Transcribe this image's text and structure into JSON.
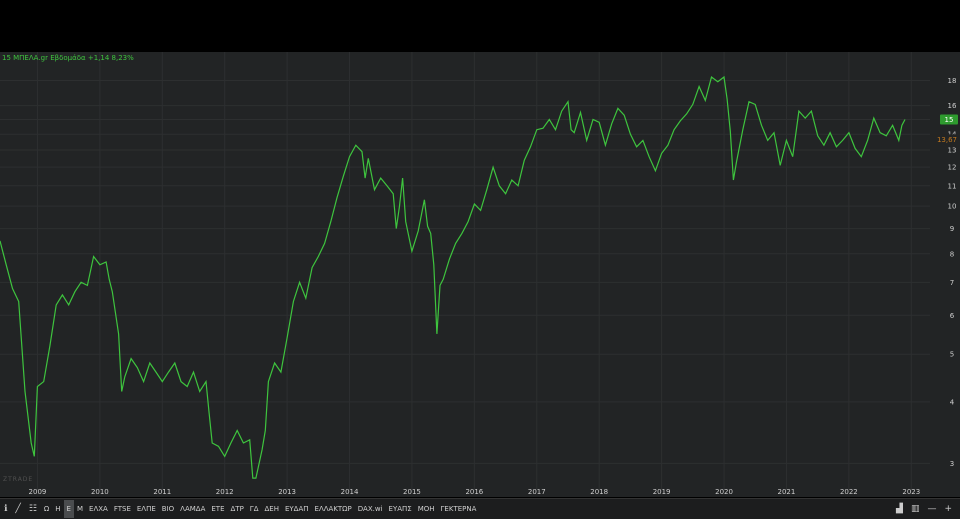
{
  "legend": {
    "text": "15 ΜΠΕΛΑ.gr Εβδομάδα +1,14 8,23%"
  },
  "watermark": "ZTRADE",
  "colors": {
    "line": "#3ec43e",
    "background": "#222425",
    "grid": "#2d2f30",
    "axis_text": "#cfcfcf",
    "price_badge": "#2e9a2e",
    "ref_badge": "#c47a1e"
  },
  "chart_data": {
    "type": "line",
    "scale": "log",
    "x_tick_labels": [
      "2009",
      "2010",
      "2011",
      "2012",
      "2013",
      "2014",
      "2015",
      "2016",
      "2017",
      "2018",
      "2019",
      "2020",
      "2021",
      "2022",
      "2023"
    ],
    "y_tick_labels": [
      "3",
      "4",
      "5",
      "6",
      "7",
      "8",
      "9",
      "10",
      "11",
      "12",
      "13",
      "14",
      "15",
      "16",
      "18"
    ],
    "xlim": [
      2008.4,
      2023.3
    ],
    "ylim": [
      2.75,
      20
    ],
    "series": [
      {
        "values": [
          [
            2008.4,
            8.5
          ],
          [
            2008.5,
            7.6
          ],
          [
            2008.6,
            6.8
          ],
          [
            2008.7,
            6.4
          ],
          [
            2008.8,
            4.2
          ],
          [
            2008.9,
            3.3
          ],
          [
            2008.95,
            3.1
          ],
          [
            2009.0,
            4.3
          ],
          [
            2009.1,
            4.4
          ],
          [
            2009.2,
            5.2
          ],
          [
            2009.3,
            6.3
          ],
          [
            2009.4,
            6.6
          ],
          [
            2009.5,
            6.3
          ],
          [
            2009.6,
            6.7
          ],
          [
            2009.7,
            7.0
          ],
          [
            2009.8,
            6.9
          ],
          [
            2009.9,
            7.9
          ],
          [
            2010.0,
            7.6
          ],
          [
            2010.1,
            7.7
          ],
          [
            2010.15,
            7.1
          ],
          [
            2010.2,
            6.7
          ],
          [
            2010.3,
            5.5
          ],
          [
            2010.35,
            4.2
          ],
          [
            2010.4,
            4.5
          ],
          [
            2010.5,
            4.9
          ],
          [
            2010.6,
            4.7
          ],
          [
            2010.7,
            4.4
          ],
          [
            2010.8,
            4.8
          ],
          [
            2010.9,
            4.6
          ],
          [
            2011.0,
            4.4
          ],
          [
            2011.1,
            4.6
          ],
          [
            2011.2,
            4.8
          ],
          [
            2011.3,
            4.4
          ],
          [
            2011.4,
            4.3
          ],
          [
            2011.5,
            4.6
          ],
          [
            2011.6,
            4.2
          ],
          [
            2011.7,
            4.4
          ],
          [
            2011.75,
            3.8
          ],
          [
            2011.8,
            3.3
          ],
          [
            2011.9,
            3.25
          ],
          [
            2012.0,
            3.1
          ],
          [
            2012.1,
            3.3
          ],
          [
            2012.2,
            3.5
          ],
          [
            2012.3,
            3.3
          ],
          [
            2012.4,
            3.35
          ],
          [
            2012.45,
            2.8
          ],
          [
            2012.5,
            2.8
          ],
          [
            2012.6,
            3.2
          ],
          [
            2012.65,
            3.5
          ],
          [
            2012.7,
            4.4
          ],
          [
            2012.8,
            4.8
          ],
          [
            2012.9,
            4.6
          ],
          [
            2013.0,
            5.4
          ],
          [
            2013.1,
            6.4
          ],
          [
            2013.2,
            7.0
          ],
          [
            2013.3,
            6.5
          ],
          [
            2013.4,
            7.5
          ],
          [
            2013.5,
            7.9
          ],
          [
            2013.6,
            8.4
          ],
          [
            2013.7,
            9.3
          ],
          [
            2013.8,
            10.4
          ],
          [
            2013.9,
            11.5
          ],
          [
            2014.0,
            12.6
          ],
          [
            2014.1,
            13.3
          ],
          [
            2014.2,
            12.9
          ],
          [
            2014.25,
            11.4
          ],
          [
            2014.3,
            12.5
          ],
          [
            2014.4,
            10.8
          ],
          [
            2014.5,
            11.4
          ],
          [
            2014.6,
            11.0
          ],
          [
            2014.7,
            10.6
          ],
          [
            2014.75,
            9.0
          ],
          [
            2014.8,
            10.0
          ],
          [
            2014.85,
            11.4
          ],
          [
            2014.9,
            9.3
          ],
          [
            2015.0,
            8.1
          ],
          [
            2015.1,
            8.9
          ],
          [
            2015.2,
            10.3
          ],
          [
            2015.25,
            9.1
          ],
          [
            2015.3,
            8.8
          ],
          [
            2015.35,
            7.6
          ],
          [
            2015.4,
            5.5
          ],
          [
            2015.45,
            6.9
          ],
          [
            2015.5,
            7.1
          ],
          [
            2015.6,
            7.8
          ],
          [
            2015.7,
            8.4
          ],
          [
            2015.8,
            8.8
          ],
          [
            2015.9,
            9.3
          ],
          [
            2016.0,
            10.1
          ],
          [
            2016.1,
            9.8
          ],
          [
            2016.2,
            10.8
          ],
          [
            2016.3,
            12.0
          ],
          [
            2016.4,
            11.0
          ],
          [
            2016.5,
            10.6
          ],
          [
            2016.6,
            11.3
          ],
          [
            2016.7,
            11.0
          ],
          [
            2016.8,
            12.4
          ],
          [
            2016.9,
            13.2
          ],
          [
            2017.0,
            14.3
          ],
          [
            2017.1,
            14.4
          ],
          [
            2017.2,
            15.0
          ],
          [
            2017.3,
            14.3
          ],
          [
            2017.4,
            15.6
          ],
          [
            2017.5,
            16.3
          ],
          [
            2017.55,
            14.3
          ],
          [
            2017.6,
            14.1
          ],
          [
            2017.7,
            15.5
          ],
          [
            2017.8,
            13.6
          ],
          [
            2017.9,
            15.0
          ],
          [
            2018.0,
            14.8
          ],
          [
            2018.1,
            13.3
          ],
          [
            2018.2,
            14.7
          ],
          [
            2018.3,
            15.8
          ],
          [
            2018.4,
            15.3
          ],
          [
            2018.5,
            14.0
          ],
          [
            2018.6,
            13.2
          ],
          [
            2018.7,
            13.6
          ],
          [
            2018.8,
            12.6
          ],
          [
            2018.9,
            11.8
          ],
          [
            2019.0,
            12.8
          ],
          [
            2019.1,
            13.3
          ],
          [
            2019.2,
            14.3
          ],
          [
            2019.3,
            14.9
          ],
          [
            2019.4,
            15.4
          ],
          [
            2019.5,
            16.1
          ],
          [
            2019.6,
            17.5
          ],
          [
            2019.7,
            16.4
          ],
          [
            2019.8,
            18.3
          ],
          [
            2019.9,
            17.9
          ],
          [
            2020.0,
            18.3
          ],
          [
            2020.05,
            16.5
          ],
          [
            2020.1,
            14.2
          ],
          [
            2020.15,
            11.3
          ],
          [
            2020.2,
            12.3
          ],
          [
            2020.3,
            14.3
          ],
          [
            2020.4,
            16.3
          ],
          [
            2020.5,
            16.1
          ],
          [
            2020.6,
            14.6
          ],
          [
            2020.7,
            13.6
          ],
          [
            2020.8,
            14.1
          ],
          [
            2020.9,
            12.1
          ],
          [
            2021.0,
            13.6
          ],
          [
            2021.1,
            12.6
          ],
          [
            2021.2,
            15.6
          ],
          [
            2021.3,
            15.1
          ],
          [
            2021.4,
            15.6
          ],
          [
            2021.5,
            13.9
          ],
          [
            2021.6,
            13.3
          ],
          [
            2021.7,
            14.1
          ],
          [
            2021.8,
            13.2
          ],
          [
            2021.9,
            13.6
          ],
          [
            2022.0,
            14.1
          ],
          [
            2022.1,
            13.1
          ],
          [
            2022.2,
            12.6
          ],
          [
            2022.3,
            13.6
          ],
          [
            2022.4,
            15.1
          ],
          [
            2022.5,
            14.1
          ],
          [
            2022.6,
            13.9
          ],
          [
            2022.7,
            14.6
          ],
          [
            2022.8,
            13.6
          ],
          [
            2022.85,
            14.6
          ],
          [
            2022.9,
            15.0
          ]
        ]
      }
    ],
    "last_price_label": "15",
    "reference_label": "13,67"
  },
  "toolbar": {
    "items": [
      "Ω",
      "Η",
      "Ε",
      "Μ",
      "ΕΛΧΑ",
      "FTSE",
      "ΕΛΠΕ",
      "ΒΙΟ",
      "ΛΑΜΔΑ",
      "ΕΤΕ",
      "ΔΤΡ",
      "ΓΔ",
      "ΔΕΗ",
      "ΕΥΔΑΠ",
      "ΕΛΛΑΚΤΩΡ",
      "DAX.wi",
      "ΕΥΑΠΣ",
      "ΜΟΗ",
      "ΓΕΚΤΕΡΝΑ"
    ],
    "active": "Ε"
  }
}
